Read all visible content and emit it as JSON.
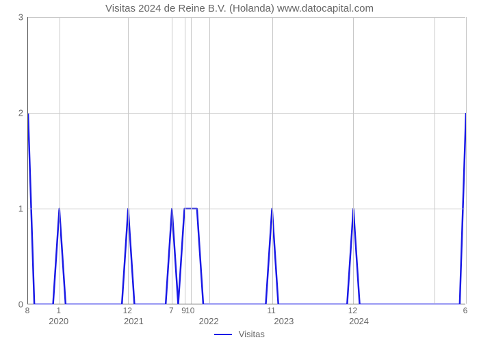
{
  "chart": {
    "type": "line",
    "title": "Visitas 2024 de Reine B.V. (Holanda) www.datocapital.com",
    "title_fontsize": 15,
    "title_color": "#666666",
    "background_color": "#ffffff",
    "axis_color": "#555555",
    "grid_color": "#c8c8c8",
    "text_color": "#666666",
    "label_fontsize": 13,
    "ylim": [
      0,
      3
    ],
    "ytick_step": 1,
    "y_ticks": [
      0,
      1,
      2,
      3
    ],
    "x_domain_months": 70,
    "x_year_labels": [
      {
        "label": "2020",
        "month_index": 5
      },
      {
        "label": "2021",
        "month_index": 17
      },
      {
        "label": "2022",
        "month_index": 29
      },
      {
        "label": "2023",
        "month_index": 41
      },
      {
        "label": "2024",
        "month_index": 53
      }
    ],
    "x_month_labels": [
      {
        "label": "8",
        "month_index": 0
      },
      {
        "label": "1",
        "month_index": 5
      },
      {
        "label": "12",
        "month_index": 16
      },
      {
        "label": "7",
        "month_index": 23
      },
      {
        "label": "9",
        "month_index": 25
      },
      {
        "label": "10",
        "month_index": 26
      },
      {
        "label": "11",
        "month_index": 39
      },
      {
        "label": "12",
        "month_index": 52
      },
      {
        "label": "6",
        "month_index": 70
      }
    ],
    "x_gridlines": [
      0,
      5,
      16,
      23,
      25,
      26,
      29,
      39,
      52,
      65,
      70
    ],
    "series": {
      "name": "Visitas",
      "color": "#1a1ae6",
      "line_width": 2.5,
      "points": [
        {
          "x": 0,
          "y": 2
        },
        {
          "x": 1,
          "y": 0
        },
        {
          "x": 4,
          "y": 0
        },
        {
          "x": 5,
          "y": 1
        },
        {
          "x": 6,
          "y": 0
        },
        {
          "x": 15,
          "y": 0
        },
        {
          "x": 16,
          "y": 1
        },
        {
          "x": 17,
          "y": 0
        },
        {
          "x": 22,
          "y": 0
        },
        {
          "x": 23,
          "y": 1
        },
        {
          "x": 24,
          "y": 0
        },
        {
          "x": 25,
          "y": 1
        },
        {
          "x": 27,
          "y": 1
        },
        {
          "x": 28,
          "y": 0
        },
        {
          "x": 38,
          "y": 0
        },
        {
          "x": 39,
          "y": 1
        },
        {
          "x": 40,
          "y": 0
        },
        {
          "x": 51,
          "y": 0
        },
        {
          "x": 52,
          "y": 1
        },
        {
          "x": 53,
          "y": 0
        },
        {
          "x": 69,
          "y": 0
        },
        {
          "x": 70,
          "y": 2
        }
      ]
    }
  },
  "legend": {
    "label": "Visitas"
  }
}
